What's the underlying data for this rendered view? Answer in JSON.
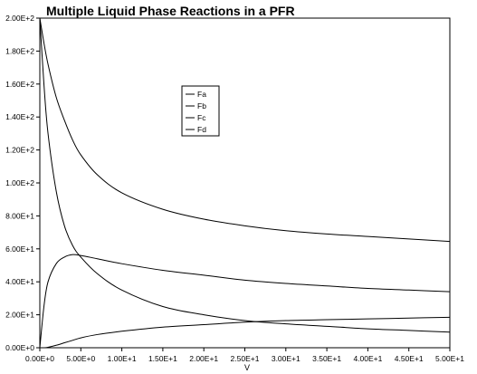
{
  "chart_data": {
    "type": "line",
    "title": "Multiple Liquid Phase Reactions in a PFR",
    "xlabel": "V",
    "ylabel": "",
    "xlim": [
      0,
      50
    ],
    "ylim": [
      0,
      200
    ],
    "xticks": [
      "0.00E+0",
      "5.00E+0",
      "1.00E+1",
      "1.50E+1",
      "2.00E+1",
      "2.50E+1",
      "3.00E+1",
      "3.50E+1",
      "4.00E+1",
      "4.50E+1",
      "5.00E+1"
    ],
    "yticks": [
      "0.00E+0",
      "2.00E+1",
      "4.00E+1",
      "6.00E+1",
      "8.00E+1",
      "1.00E+2",
      "1.20E+2",
      "1.40E+2",
      "1.60E+2",
      "1.80E+2",
      "2.00E+2"
    ],
    "legend_position": "upper-center",
    "grid": false,
    "line_color": "#000000",
    "x": [
      0,
      0.5,
      1,
      2,
      3,
      4,
      5,
      7,
      10,
      15,
      20,
      25,
      30,
      35,
      40,
      45,
      50
    ],
    "series": [
      {
        "name": "Fa",
        "values": [
          200,
          185,
          172,
          152,
          138,
          126,
          117,
          105,
          94,
          84,
          78,
          74,
          71,
          69,
          67.5,
          66,
          64.5
        ]
      },
      {
        "name": "Fb",
        "values": [
          200,
          160,
          130,
          95,
          74,
          62,
          55,
          45,
          35,
          25,
          20,
          16.5,
          14.5,
          13,
          11.5,
          10.5,
          9.5
        ]
      },
      {
        "name": "Fc",
        "values": [
          0,
          25,
          40,
          51,
          55,
          56.5,
          56,
          54,
          51,
          47,
          44,
          41,
          39,
          37.5,
          36,
          35,
          34
        ]
      },
      {
        "name": "Fd",
        "values": [
          0,
          0,
          0.3,
          1.5,
          3,
          4.5,
          6,
          8,
          10,
          12.5,
          14,
          15.5,
          16.5,
          17,
          17.5,
          18,
          18.5
        ]
      }
    ]
  }
}
